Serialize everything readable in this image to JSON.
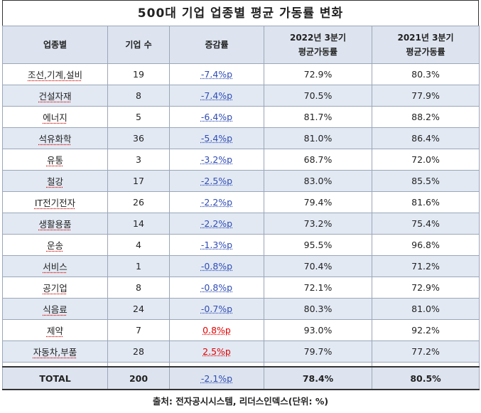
{
  "title": "500대 기업 업종별 평균 가동률 변화",
  "headers": {
    "sector": "업종별",
    "count": "기업 수",
    "change": "증감률",
    "q2022_line1": "2022년 3분기",
    "q2022_line2": "평균가동률",
    "q2021_line1": "2021년 3분기",
    "q2021_line2": "평균가동률"
  },
  "rows": [
    {
      "sector": "조선,기계,설비",
      "count": "19",
      "change": "-7.4%p",
      "q2022": "72.9%",
      "q2021": "80.3%",
      "dir": "neg"
    },
    {
      "sector": "건설자재",
      "count": "8",
      "change": "-7.4%p",
      "q2022": "70.5%",
      "q2021": "77.9%",
      "dir": "neg"
    },
    {
      "sector": "에너지",
      "count": "5",
      "change": "-6.4%p",
      "q2022": "81.7%",
      "q2021": "88.2%",
      "dir": "neg"
    },
    {
      "sector": "석유화학",
      "count": "36",
      "change": "-5.4%p",
      "q2022": "81.0%",
      "q2021": "86.4%",
      "dir": "neg"
    },
    {
      "sector": "유통",
      "count": "3",
      "change": "-3.2%p",
      "q2022": "68.7%",
      "q2021": "72.0%",
      "dir": "neg"
    },
    {
      "sector": "철강",
      "count": "17",
      "change": "-2.5%p",
      "q2022": "83.0%",
      "q2021": "85.5%",
      "dir": "neg"
    },
    {
      "sector": "IT전기전자",
      "count": "26",
      "change": "-2.2%p",
      "q2022": "79.4%",
      "q2021": "81.6%",
      "dir": "neg"
    },
    {
      "sector": "생활용품",
      "count": "14",
      "change": "-2.2%p",
      "q2022": "73.2%",
      "q2021": "75.4%",
      "dir": "neg"
    },
    {
      "sector": "운송",
      "count": "4",
      "change": "-1.3%p",
      "q2022": "95.5%",
      "q2021": "96.8%",
      "dir": "neg"
    },
    {
      "sector": "서비스",
      "count": "1",
      "change": "-0.8%p",
      "q2022": "70.4%",
      "q2021": "71.2%",
      "dir": "neg"
    },
    {
      "sector": "공기업",
      "count": "8",
      "change": "-0.8%p",
      "q2022": "72.1%",
      "q2021": "72.9%",
      "dir": "neg"
    },
    {
      "sector": "식음료",
      "count": "24",
      "change": "-0.7%p",
      "q2022": "80.3%",
      "q2021": "81.0%",
      "dir": "neg"
    },
    {
      "sector": "제약",
      "count": "7",
      "change": "0.8%p",
      "q2022": "93.0%",
      "q2021": "92.2%",
      "dir": "pos"
    },
    {
      "sector": "자동차,부품",
      "count": "28",
      "change": "2.5%p",
      "q2022": "79.7%",
      "q2021": "77.2%",
      "dir": "pos"
    }
  ],
  "total": {
    "sector": "TOTAL",
    "count": "200",
    "change": "-2.1%p",
    "q2022": "78.4%",
    "q2021": "80.5%"
  },
  "footer": "출처: 전자공시시스템, 리더스인덱스(단위: %)",
  "colors": {
    "negative": "#2f4cb5",
    "positive": "#e00000",
    "header_bg": "#dde4ef",
    "alt_row_bg": "#e2e9f3"
  }
}
